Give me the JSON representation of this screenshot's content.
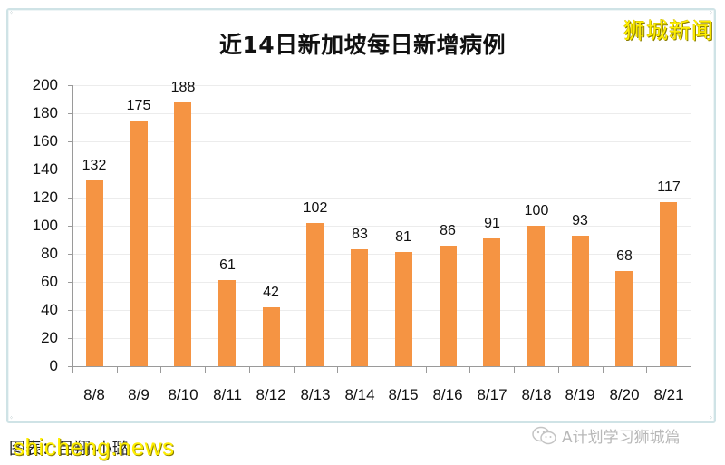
{
  "watermarks": {
    "top_right": "狮城新闻",
    "bottom_left": "shicheng.news",
    "wechat_account": "A计划学习狮城篇"
  },
  "credit": "图表：吕翔·小璐",
  "colors": {
    "bar": "#f59443",
    "watermark": "#ffef00",
    "frame_border": "#cfe3e6"
  },
  "chart_data": {
    "type": "bar",
    "title": "近14日新加坡每日新增病例",
    "xlabel": "",
    "ylabel": "",
    "ylim": [
      0,
      200
    ],
    "yticks": [
      0,
      20,
      40,
      60,
      80,
      100,
      120,
      140,
      160,
      180,
      200
    ],
    "grid": true,
    "legend": null,
    "categories": [
      "8/8",
      "8/9",
      "8/10",
      "8/11",
      "8/12",
      "8/13",
      "8/14",
      "8/15",
      "8/16",
      "8/17",
      "8/18",
      "8/19",
      "8/20",
      "8/21"
    ],
    "values": [
      132,
      175,
      188,
      61,
      42,
      102,
      83,
      81,
      86,
      91,
      100,
      93,
      68,
      117
    ],
    "data_labels": [
      "132",
      "175",
      "188",
      "61",
      "42",
      "102",
      "83",
      "81",
      "86",
      "91",
      "100",
      "93",
      "68",
      "117"
    ]
  }
}
